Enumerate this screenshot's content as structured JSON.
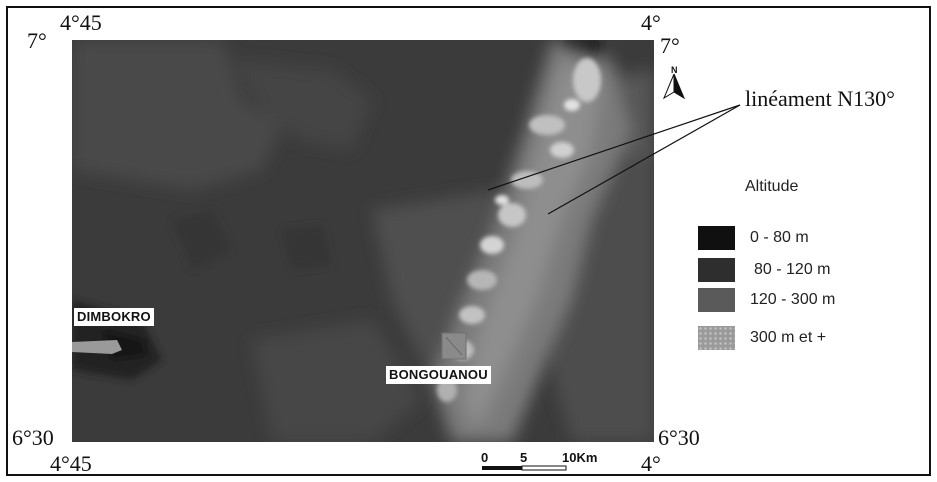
{
  "map": {
    "coords": {
      "top_left_lat": "7°",
      "top_left_lon": "4°45",
      "top_right_lon": "4°",
      "top_right_lat": "7°",
      "bottom_left_lat": "6°30",
      "bottom_left_lon": "4°45",
      "bottom_right_lat": "6°30",
      "bottom_right_lon": "4°"
    },
    "towns": {
      "dimbokro": "DIMBOKRO",
      "bongouanou": "BONGOUANOU"
    },
    "lineament_label": "linéament N130°",
    "north_arrow_label": "N",
    "scale": {
      "tick_0": "0",
      "tick_5": "5",
      "tick_10": "10Km"
    }
  },
  "legend": {
    "title": "Altitude",
    "items": [
      {
        "label": "0 - 80 m",
        "color": "#101010"
      },
      {
        "label": "80 - 120 m",
        "color": "#2e2e2e"
      },
      {
        "label": "120 - 300 m",
        "color": "#5a5a5a"
      },
      {
        "label": "300 m et +",
        "color": "#9a9a9a"
      }
    ]
  }
}
